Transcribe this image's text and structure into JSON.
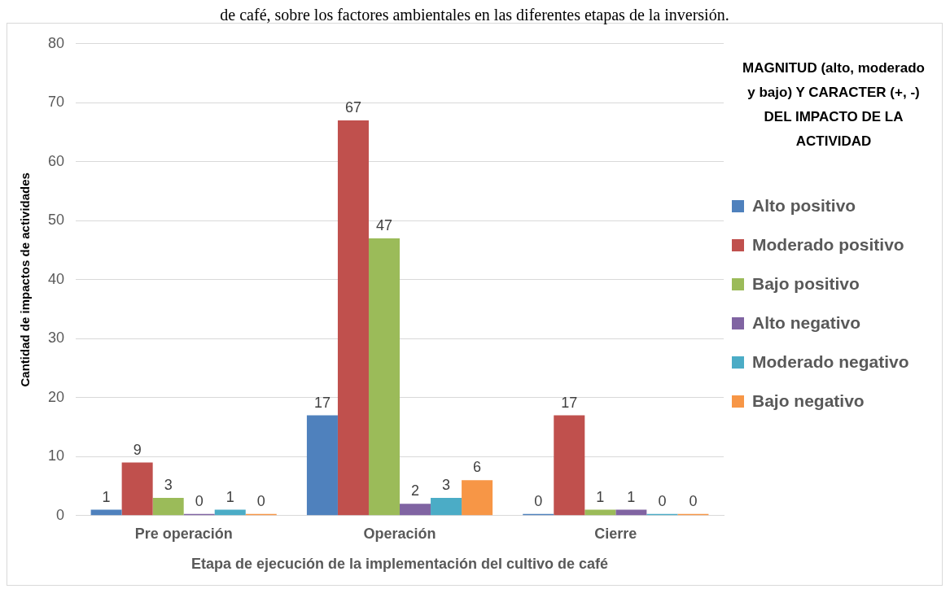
{
  "chart_data": {
    "type": "bar",
    "annotations": [
      "de café,  sobre los factores ambientales en las diferentes etapas de la inversión."
    ],
    "xlabel": "Etapa de ejecución de la implementación del cultivo de café",
    "ylabel": "Cantidad de impactos de actividades",
    "legend_title": "MAGNITUD (alto, moderado y bajo)  Y CARACTER (+, -) DEL IMPACTO DE LA ACTIVIDAD",
    "categories": [
      "Pre operación",
      "Operación",
      "Cierre"
    ],
    "series": [
      {
        "name": "Alto positivo",
        "color": "#4f81bd",
        "values": [
          1,
          17,
          0
        ]
      },
      {
        "name": "Moderado positivo",
        "color": "#c0504d",
        "values": [
          9,
          67,
          17
        ]
      },
      {
        "name": "Bajo positivo",
        "color": "#9bbb59",
        "values": [
          3,
          47,
          1
        ]
      },
      {
        "name": "Alto negativo",
        "color": "#8064a2",
        "values": [
          0,
          2,
          1
        ]
      },
      {
        "name": "Moderado negativo",
        "color": "#4bacc6",
        "values": [
          1,
          3,
          0
        ]
      },
      {
        "name": "Bajo negativo",
        "color": "#f79646",
        "values": [
          0,
          6,
          0
        ]
      }
    ],
    "ylim": [
      0,
      80
    ],
    "yticks": [
      0,
      10,
      20,
      30,
      40,
      50,
      60,
      70,
      80
    ],
    "grid": "y",
    "legend": "right",
    "data_labels": true
  }
}
